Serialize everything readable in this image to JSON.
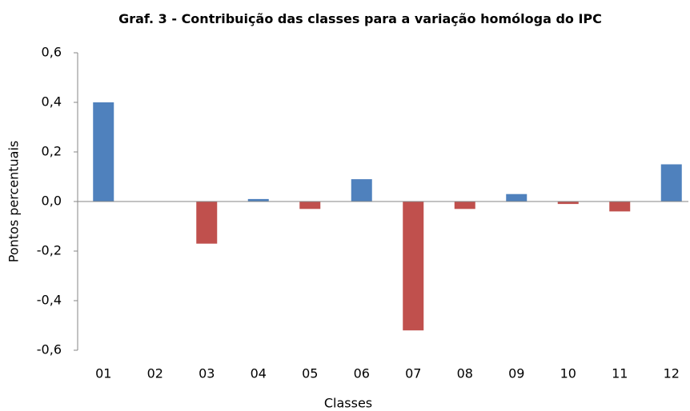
{
  "chart_data": {
    "type": "bar",
    "title": "Graf. 3 - Contribuição das classes para a variação homóloga do IPC",
    "x_label": "Classes",
    "y_label": "Pontos percentuais",
    "categories": [
      "01",
      "02",
      "03",
      "04",
      "05",
      "06",
      "07",
      "08",
      "09",
      "10",
      "11",
      "12"
    ],
    "values": [
      0.4,
      0,
      -0.17,
      0.01,
      -0.03,
      0.09,
      -0.52,
      -0.03,
      0.03,
      -0.01,
      -0.04,
      0.15
    ],
    "colors": [
      "#4f81bd",
      "#4f81bd",
      "#c0504d",
      "#4f81bd",
      "#c0504d",
      "#4f81bd",
      "#c0504d",
      "#c0504d",
      "#4f81bd",
      "#c0504d",
      "#c0504d",
      "#4f81bd"
    ],
    "ylim": [
      -0.6,
      0.6
    ],
    "yticks": [
      {
        "value": -0.6,
        "label": "-0,6"
      },
      {
        "value": -0.4,
        "label": "-0,4"
      },
      {
        "value": -0.2,
        "label": "-0,2"
      },
      {
        "value": 0,
        "label": "0,0"
      },
      {
        "value": 0.2,
        "label": "0,2"
      },
      {
        "value": 0.4,
        "label": "0,4"
      },
      {
        "value": 0.6,
        "label": "0,6"
      }
    ],
    "grid": false
  }
}
